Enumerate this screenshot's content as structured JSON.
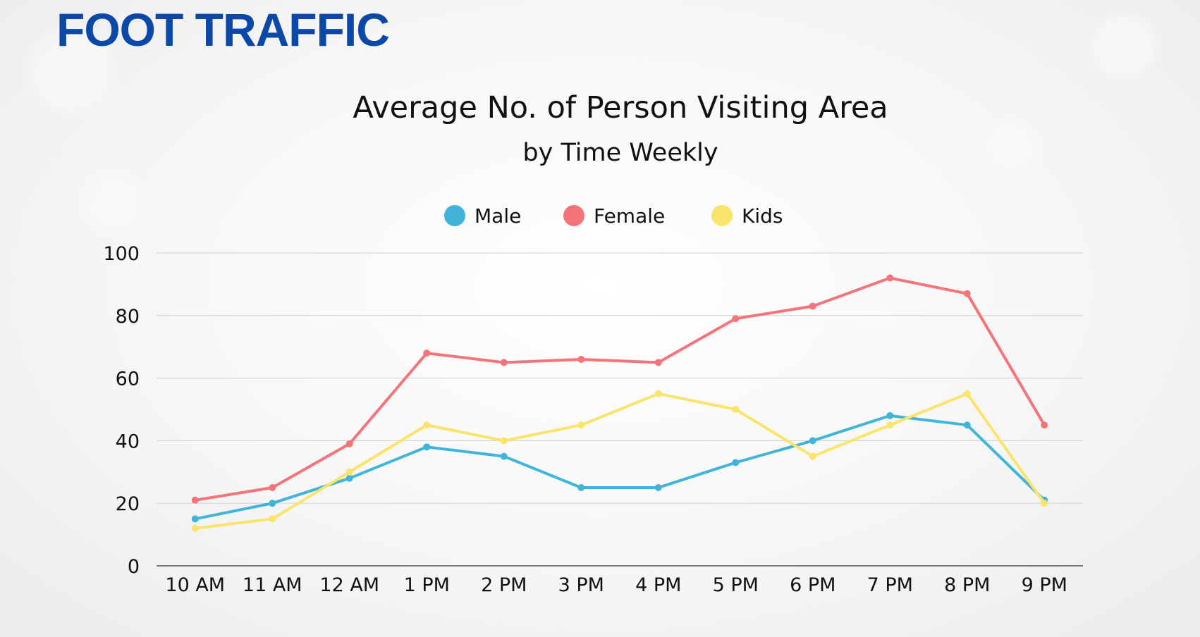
{
  "page": {
    "title": "FOOT TRAFFIC"
  },
  "chart_data": {
    "type": "line",
    "title": "Average No. of Person Visiting Area",
    "subtitle": "by Time Weekly",
    "xlabel": "",
    "ylabel": "",
    "ylim": [
      0,
      100
    ],
    "yticks": [
      0,
      20,
      40,
      60,
      80,
      100
    ],
    "grid": true,
    "legend_position": "top-center",
    "categories": [
      "10 AM",
      "11 AM",
      "12 AM",
      "1 PM",
      "2 PM",
      "3 PM",
      "4 PM",
      "5 PM",
      "6 PM",
      "7 PM",
      "8 PM",
      "9 PM"
    ],
    "series": [
      {
        "name": "Male",
        "color": "#41b5d9",
        "values": [
          15,
          20,
          28,
          38,
          35,
          25,
          25,
          33,
          40,
          48,
          45,
          21
        ]
      },
      {
        "name": "Female",
        "color": "#f4747a",
        "values": [
          21,
          25,
          39,
          68,
          65,
          66,
          65,
          79,
          83,
          92,
          87,
          45
        ]
      },
      {
        "name": "Kids",
        "color": "#fbe46b",
        "values": [
          12,
          15,
          30,
          45,
          40,
          45,
          55,
          50,
          35,
          45,
          55,
          20
        ]
      }
    ]
  }
}
